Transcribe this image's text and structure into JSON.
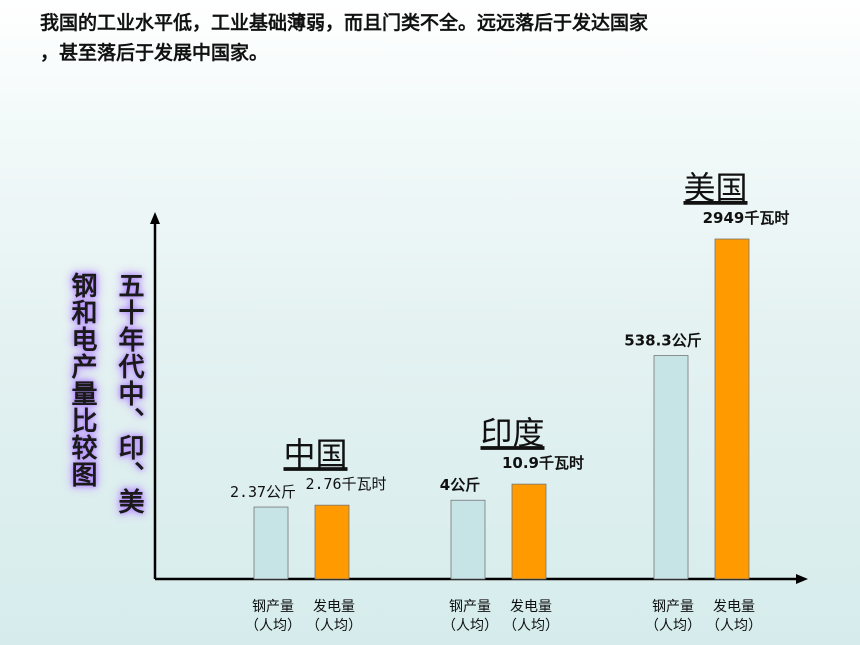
{
  "headline": {
    "line1": "我国的工业水平低，工业基础薄弱，而且门类不全。远远落后于发达国家",
    "line2": "，甚至落后于发展中国家。"
  },
  "side_title": {
    "col1": "五十年代中、印、美",
    "col2": "钢和电产量比较图"
  },
  "colors": {
    "steel": "#c6e4e6",
    "power": "#ff9a00",
    "axis": "#000000"
  },
  "chart_data": {
    "type": "bar",
    "title": "五十年代中、印、美钢和电产量比较图",
    "categories": [
      "钢产量（人均）",
      "发电量（人均）"
    ],
    "category_lines": [
      [
        "钢产量",
        "（人均）"
      ],
      [
        "发电量",
        "（人均）"
      ]
    ],
    "groups": [
      {
        "name": "中国",
        "values": [
          2.37,
          2.76
        ],
        "units": [
          "公斤",
          "千瓦时"
        ],
        "labels": [
          "2.37公斤",
          "2.76千瓦时"
        ],
        "label_style": "mono"
      },
      {
        "name": "印度",
        "values": [
          4,
          10.9
        ],
        "units": [
          "公斤",
          "千瓦时"
        ],
        "labels": [
          "4公斤",
          "10.9千瓦时"
        ],
        "label_style": "bold"
      },
      {
        "name": "美国",
        "values": [
          538.3,
          2949
        ],
        "units": [
          "公斤",
          "千瓦时"
        ],
        "labels": [
          "538.3公斤",
          "2949千瓦时"
        ],
        "label_style": "bold"
      }
    ],
    "grid": false,
    "legend": "none"
  }
}
